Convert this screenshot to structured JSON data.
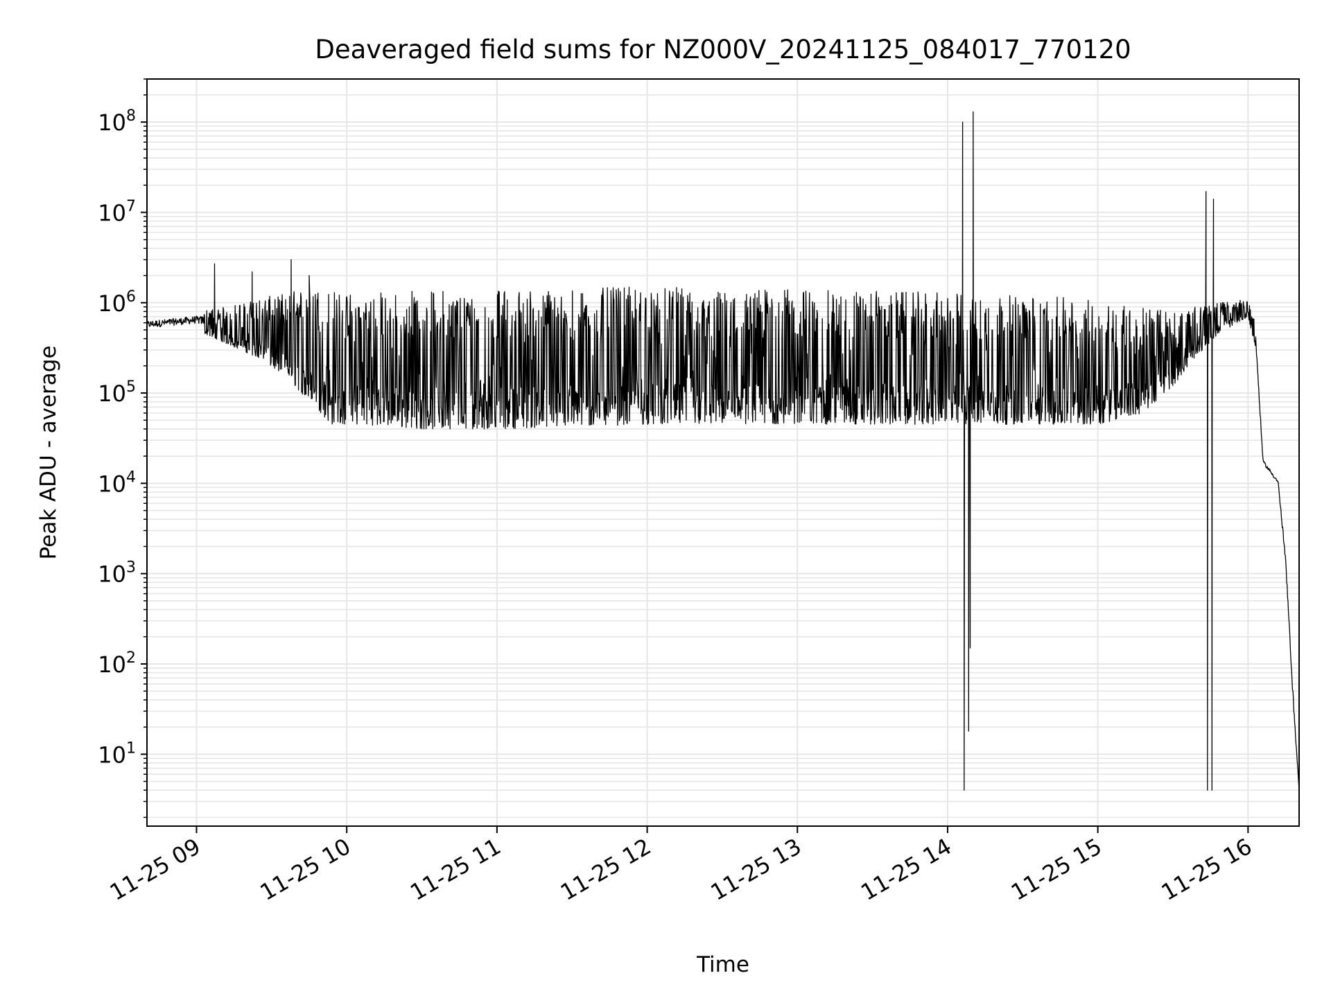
{
  "chart_data": {
    "type": "line",
    "title": "Deaveraged field sums for NZ000V_20241125_084017_770120",
    "xlabel": "Time",
    "ylabel": "Peak ADU - average",
    "x_tick_labels": [
      "11-25 09",
      "11-25 10",
      "11-25 11",
      "11-25 12",
      "11-25 13",
      "11-25 14",
      "11-25 15",
      "11-25 16"
    ],
    "x_ticks_hours": [
      9,
      10,
      11,
      12,
      13,
      14,
      15,
      16
    ],
    "xlim_hours": [
      8.67,
      16.34
    ],
    "y_scale": "log",
    "ylim": [
      1.6,
      300000000
    ],
    "y_tick_exponents": [
      1,
      2,
      3,
      4,
      5,
      6,
      7,
      8
    ],
    "grid": "on (major and minor)",
    "line_color": "#000000",
    "grid_color": "#e6e6e6",
    "series": [
      {
        "name": "",
        "description": "noisy time series; lower envelope and upper envelope in ADU",
        "lower_envelope": [
          [
            8.67,
            450000
          ],
          [
            9.0,
            500000
          ],
          [
            9.2,
            350000
          ],
          [
            9.4,
            250000
          ],
          [
            9.6,
            150000
          ],
          [
            9.75,
            80000
          ],
          [
            9.9,
            45000
          ],
          [
            10.1,
            45000
          ],
          [
            10.5,
            40000
          ],
          [
            11.0,
            40000
          ],
          [
            12.0,
            45000
          ],
          [
            13.0,
            45000
          ],
          [
            14.0,
            45000
          ],
          [
            15.0,
            45000
          ],
          [
            15.3,
            60000
          ],
          [
            15.5,
            120000
          ],
          [
            15.65,
            250000
          ],
          [
            15.8,
            450000
          ],
          [
            16.0,
            700000
          ],
          [
            16.05,
            300000
          ],
          [
            16.1,
            15000
          ],
          [
            16.2,
            9000
          ],
          [
            16.25,
            1000
          ],
          [
            16.3,
            30
          ],
          [
            16.34,
            4
          ]
        ],
        "upper_envelope": [
          [
            8.67,
            700000
          ],
          [
            9.0,
            800000
          ],
          [
            9.2,
            900000
          ],
          [
            9.4,
            1100000
          ],
          [
            9.6,
            1300000
          ],
          [
            9.75,
            1500000
          ],
          [
            10.0,
            1300000
          ],
          [
            10.5,
            1400000
          ],
          [
            11.0,
            1400000
          ],
          [
            12.0,
            1500000
          ],
          [
            13.0,
            1400000
          ],
          [
            14.0,
            1300000
          ],
          [
            15.0,
            1100000
          ],
          [
            15.5,
            800000
          ],
          [
            15.8,
            1000000
          ],
          [
            16.0,
            1100000
          ],
          [
            16.05,
            600000
          ],
          [
            16.1,
            20000
          ],
          [
            16.2,
            12000
          ],
          [
            16.25,
            2000
          ],
          [
            16.3,
            60
          ],
          [
            16.34,
            4
          ]
        ],
        "spikes": [
          [
            9.12,
            2700000
          ],
          [
            9.37,
            2200000
          ],
          [
            9.63,
            3000000
          ],
          [
            9.75,
            2000000
          ],
          [
            14.1,
            100000000
          ],
          [
            14.17,
            130000000
          ],
          [
            15.72,
            17000000
          ],
          [
            15.77,
            14000000
          ]
        ],
        "dropouts": [
          [
            14.11,
            4
          ],
          [
            14.14,
            18
          ],
          [
            14.15,
            150
          ],
          [
            15.73,
            4
          ],
          [
            15.76,
            4
          ]
        ]
      }
    ]
  }
}
